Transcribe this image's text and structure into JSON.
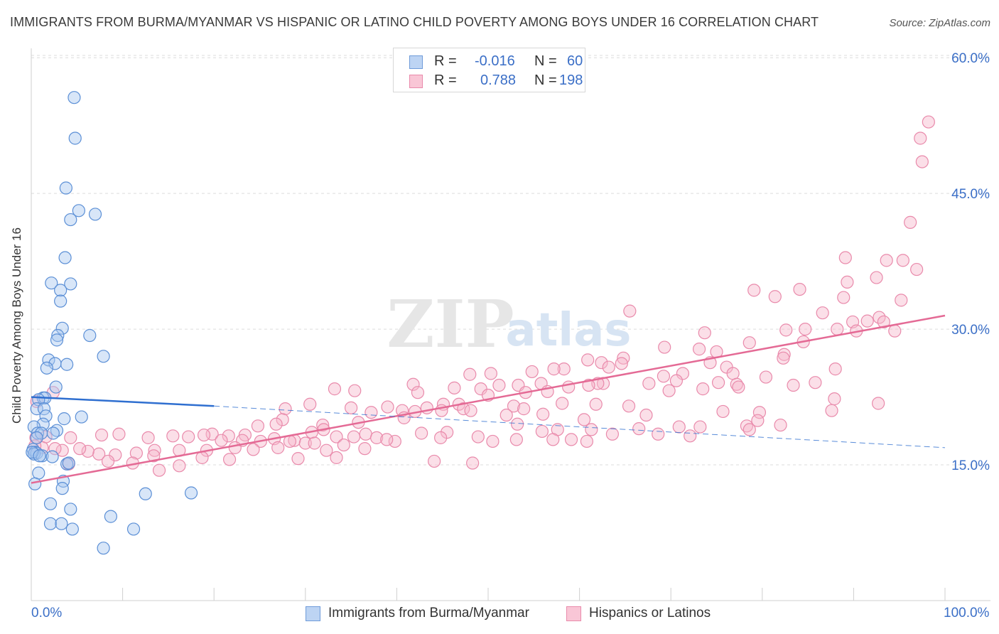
{
  "header": {
    "title": "IMMIGRANTS FROM BURMA/MYANMAR VS HISPANIC OR LATINO CHILD POVERTY AMONG BOYS UNDER 16 CORRELATION CHART",
    "source": "Source: ZipAtlas.com"
  },
  "watermark": {
    "zip": "ZIP",
    "atlas": "atlas"
  },
  "legend": {
    "rows": [
      {
        "r_label": "R =",
        "r_value": "-0.016",
        "n_label": "N =",
        "n_value": "60"
      },
      {
        "r_label": "R =",
        "r_value": "0.788",
        "n_label": "N =",
        "n_value": "198"
      }
    ]
  },
  "bottom_legend": {
    "items": [
      {
        "label": "Immigrants from Burma/Myanmar"
      },
      {
        "label": "Hispanics or Latinos"
      }
    ]
  },
  "x_labels": {
    "left": "0.0%",
    "right": "100.0%"
  },
  "chart_data": {
    "type": "scatter",
    "title": "IMMIGRANTS FROM BURMA/MYANMAR VS HISPANIC OR LATINO CHILD POVERTY AMONG BOYS UNDER 16 CORRELATION CHART",
    "xlabel": "",
    "ylabel": "Child Poverty Among Boys Under 16",
    "xlim": [
      0,
      100
    ],
    "ylim": [
      0,
      63
    ],
    "x_ticks": [
      "0.0%",
      "100.0%"
    ],
    "y_ticks": [
      15,
      30,
      45,
      60
    ],
    "y_tick_labels": [
      "15.0%",
      "30.0%",
      "45.0%",
      "60.0%"
    ],
    "grid": true,
    "legend_position": "top-center",
    "colors": {
      "blue_fill": "#a9c8f0",
      "blue_stroke": "#5b8fd6",
      "blue_line": "#2f6fd0",
      "pink_fill": "#f7b9cd",
      "pink_stroke": "#e98aab",
      "pink_line": "#e46a95",
      "axis_text": "#3b6fc7",
      "grid": "#dcdcdc"
    },
    "series": [
      {
        "name": "Immigrants from Burma/Myanmar",
        "color": "#a9c8f0",
        "trend": {
          "x": [
            0,
            20
          ],
          "y": [
            22.5,
            21.5
          ],
          "dashed_extension_to_x": 100,
          "dashed_y_end": 16.9
        },
        "points": [
          [
            4.7,
            55.6
          ],
          [
            4.8,
            51.1
          ],
          [
            3.8,
            45.6
          ],
          [
            5.2,
            43.1
          ],
          [
            7.0,
            42.7
          ],
          [
            4.3,
            42.1
          ],
          [
            3.7,
            37.9
          ],
          [
            2.2,
            35.1
          ],
          [
            4.3,
            35.0
          ],
          [
            3.2,
            34.3
          ],
          [
            3.2,
            33.1
          ],
          [
            3.4,
            30.1
          ],
          [
            6.4,
            29.3
          ],
          [
            2.9,
            29.3
          ],
          [
            2.8,
            28.8
          ],
          [
            7.9,
            27.0
          ],
          [
            1.9,
            26.6
          ],
          [
            3.9,
            26.1
          ],
          [
            2.6,
            26.2
          ],
          [
            1.7,
            25.7
          ],
          [
            2.7,
            23.6
          ],
          [
            1.3,
            22.4
          ],
          [
            1.5,
            22.4
          ],
          [
            0.8,
            22.2
          ],
          [
            0.6,
            21.2
          ],
          [
            1.4,
            21.2
          ],
          [
            1.6,
            20.4
          ],
          [
            5.5,
            20.3
          ],
          [
            3.6,
            20.1
          ],
          [
            1.3,
            19.5
          ],
          [
            0.3,
            19.2
          ],
          [
            0.7,
            18.5
          ],
          [
            2.8,
            18.8
          ],
          [
            1.1,
            18.5
          ],
          [
            2.4,
            18.5
          ],
          [
            0.6,
            18.0
          ],
          [
            0.2,
            16.7
          ],
          [
            0.4,
            16.4
          ],
          [
            0.6,
            16.3
          ],
          [
            0.3,
            16.2
          ],
          [
            1.2,
            16.0
          ],
          [
            2.3,
            15.9
          ],
          [
            0.1,
            16.4
          ],
          [
            0.9,
            16.0
          ],
          [
            3.9,
            15.1
          ],
          [
            4.1,
            15.2
          ],
          [
            0.8,
            14.1
          ],
          [
            3.5,
            13.2
          ],
          [
            0.4,
            12.9
          ],
          [
            3.4,
            12.4
          ],
          [
            12.5,
            11.8
          ],
          [
            17.5,
            11.9
          ],
          [
            2.1,
            10.7
          ],
          [
            4.3,
            10.1
          ],
          [
            8.7,
            9.3
          ],
          [
            2.1,
            8.5
          ],
          [
            3.3,
            8.5
          ],
          [
            4.5,
            7.9
          ],
          [
            11.2,
            7.9
          ],
          [
            7.9,
            5.8
          ]
        ]
      },
      {
        "name": "Hispanics or Latinos",
        "color": "#f7b9cd",
        "trend": {
          "x": [
            0,
            100
          ],
          "y": [
            13.0,
            31.5
          ]
        },
        "points": [
          [
            98.2,
            52.9
          ],
          [
            97.3,
            51.1
          ],
          [
            97.5,
            48.5
          ],
          [
            96.2,
            41.8
          ],
          [
            89.1,
            37.9
          ],
          [
            95.4,
            37.6
          ],
          [
            96.9,
            36.6
          ],
          [
            93.6,
            37.6
          ],
          [
            92.5,
            35.7
          ],
          [
            89.3,
            35.2
          ],
          [
            84.1,
            34.4
          ],
          [
            79.1,
            34.3
          ],
          [
            81.4,
            33.6
          ],
          [
            88.9,
            33.5
          ],
          [
            95.2,
            33.2
          ],
          [
            86.6,
            31.8
          ],
          [
            65.5,
            32.0
          ],
          [
            89.9,
            30.8
          ],
          [
            91.5,
            30.9
          ],
          [
            92.8,
            31.3
          ],
          [
            93.3,
            30.8
          ],
          [
            88.2,
            30.0
          ],
          [
            90.3,
            29.8
          ],
          [
            94.5,
            29.8
          ],
          [
            82.6,
            29.9
          ],
          [
            84.7,
            30.0
          ],
          [
            84.5,
            28.6
          ],
          [
            78.6,
            28.5
          ],
          [
            73.7,
            29.6
          ],
          [
            69.3,
            28.0
          ],
          [
            73.1,
            27.8
          ],
          [
            75.0,
            27.5
          ],
          [
            82.4,
            27.2
          ],
          [
            82.3,
            26.8
          ],
          [
            64.8,
            26.8
          ],
          [
            60.9,
            26.6
          ],
          [
            74.3,
            26.3
          ],
          [
            62.4,
            26.3
          ],
          [
            63.2,
            25.8
          ],
          [
            64.6,
            26.2
          ],
          [
            76.1,
            25.8
          ],
          [
            58.3,
            25.6
          ],
          [
            57.2,
            25.6
          ],
          [
            88.0,
            25.6
          ],
          [
            71.3,
            25.1
          ],
          [
            50.3,
            25.1
          ],
          [
            54.8,
            25.3
          ],
          [
            69.2,
            24.8
          ],
          [
            48.0,
            25.0
          ],
          [
            76.8,
            25.1
          ],
          [
            75.2,
            24.1
          ],
          [
            80.4,
            24.7
          ],
          [
            70.6,
            24.3
          ],
          [
            62.6,
            24.0
          ],
          [
            67.6,
            24.0
          ],
          [
            62.0,
            24.0
          ],
          [
            85.8,
            24.1
          ],
          [
            83.4,
            23.8
          ],
          [
            77.2,
            23.9
          ],
          [
            77.4,
            23.6
          ],
          [
            73.5,
            23.4
          ],
          [
            58.8,
            23.6
          ],
          [
            53.3,
            23.8
          ],
          [
            51.2,
            23.8
          ],
          [
            55.8,
            24.0
          ],
          [
            61.0,
            23.8
          ],
          [
            69.8,
            23.2
          ],
          [
            41.8,
            23.9
          ],
          [
            49.2,
            23.4
          ],
          [
            54.1,
            23.0
          ],
          [
            56.5,
            23.1
          ],
          [
            46.3,
            23.5
          ],
          [
            50.0,
            22.7
          ],
          [
            42.3,
            23.0
          ],
          [
            33.2,
            23.4
          ],
          [
            35.4,
            23.2
          ],
          [
            92.7,
            21.8
          ],
          [
            87.9,
            22.3
          ],
          [
            61.8,
            21.7
          ],
          [
            52.8,
            21.5
          ],
          [
            46.8,
            21.7
          ],
          [
            45.1,
            21.7
          ],
          [
            53.9,
            21.2
          ],
          [
            43.3,
            21.3
          ],
          [
            47.3,
            21.2
          ],
          [
            48.1,
            21.0
          ],
          [
            44.9,
            21.0
          ],
          [
            42.0,
            20.9
          ],
          [
            40.6,
            21.0
          ],
          [
            39.0,
            21.4
          ],
          [
            30.5,
            21.7
          ],
          [
            35.0,
            21.3
          ],
          [
            37.2,
            20.8
          ],
          [
            27.8,
            21.2
          ],
          [
            40.8,
            20.2
          ],
          [
            52.0,
            20.5
          ],
          [
            58.1,
            21.8
          ],
          [
            65.4,
            21.5
          ],
          [
            67.3,
            20.5
          ],
          [
            87.6,
            21.0
          ],
          [
            79.7,
            20.8
          ],
          [
            75.7,
            20.9
          ],
          [
            56.0,
            20.6
          ],
          [
            60.5,
            20.0
          ],
          [
            53.2,
            19.5
          ],
          [
            35.8,
            19.7
          ],
          [
            27.5,
            20.0
          ],
          [
            31.9,
            19.4
          ],
          [
            26.8,
            19.5
          ],
          [
            24.8,
            19.3
          ],
          [
            32.0,
            18.9
          ],
          [
            30.7,
            18.6
          ],
          [
            36.6,
            18.4
          ],
          [
            35.3,
            18.1
          ],
          [
            23.4,
            18.3
          ],
          [
            28.8,
            17.7
          ],
          [
            26.6,
            17.9
          ],
          [
            23.1,
            17.7
          ],
          [
            21.6,
            18.2
          ],
          [
            19.8,
            18.4
          ],
          [
            18.9,
            18.3
          ],
          [
            20.8,
            17.7
          ],
          [
            28.3,
            17.6
          ],
          [
            30.0,
            17.4
          ],
          [
            33.4,
            18.1
          ],
          [
            37.8,
            18.0
          ],
          [
            39.8,
            17.6
          ],
          [
            42.7,
            18.5
          ],
          [
            45.5,
            18.6
          ],
          [
            48.9,
            18.1
          ],
          [
            55.9,
            18.7
          ],
          [
            57.6,
            18.9
          ],
          [
            61.3,
            18.9
          ],
          [
            66.5,
            19.0
          ],
          [
            70.9,
            19.2
          ],
          [
            73.2,
            19.2
          ],
          [
            78.3,
            19.3
          ],
          [
            79.5,
            19.9
          ],
          [
            82.0,
            19.4
          ],
          [
            78.6,
            18.9
          ],
          [
            72.1,
            18.2
          ],
          [
            68.6,
            18.4
          ],
          [
            63.6,
            18.4
          ],
          [
            59.1,
            17.8
          ],
          [
            53.1,
            17.8
          ],
          [
            50.5,
            17.6
          ],
          [
            44.8,
            18.0
          ],
          [
            38.9,
            17.8
          ],
          [
            34.2,
            17.2
          ],
          [
            31.0,
            17.4
          ],
          [
            25.1,
            17.6
          ],
          [
            17.2,
            18.1
          ],
          [
            15.5,
            18.2
          ],
          [
            12.8,
            18.0
          ],
          [
            9.6,
            18.4
          ],
          [
            7.7,
            18.3
          ],
          [
            4.3,
            18.0
          ],
          [
            1.6,
            18.1
          ],
          [
            0.5,
            18.0
          ],
          [
            57.1,
            17.8
          ],
          [
            60.8,
            17.6
          ],
          [
            36.5,
            16.8
          ],
          [
            32.3,
            16.6
          ],
          [
            27.0,
            16.9
          ],
          [
            24.3,
            16.7
          ],
          [
            22.3,
            16.9
          ],
          [
            19.2,
            16.6
          ],
          [
            16.2,
            16.6
          ],
          [
            13.5,
            16.6
          ],
          [
            11.5,
            16.3
          ],
          [
            9.2,
            16.1
          ],
          [
            7.4,
            16.2
          ],
          [
            6.2,
            16.5
          ],
          [
            5.3,
            16.8
          ],
          [
            3.4,
            16.6
          ],
          [
            2.6,
            16.8
          ],
          [
            1.2,
            16.9
          ],
          [
            0.4,
            17.1
          ],
          [
            0.6,
            22.0
          ],
          [
            2.4,
            23.0
          ],
          [
            13.4,
            16.0
          ],
          [
            18.7,
            15.8
          ],
          [
            21.7,
            15.6
          ],
          [
            29.2,
            15.7
          ],
          [
            33.4,
            15.8
          ],
          [
            44.1,
            15.4
          ],
          [
            48.3,
            15.2
          ],
          [
            4.1,
            15.1
          ],
          [
            8.4,
            15.4
          ],
          [
            11.1,
            15.2
          ],
          [
            14.0,
            14.4
          ],
          [
            16.2,
            14.9
          ]
        ]
      }
    ]
  }
}
